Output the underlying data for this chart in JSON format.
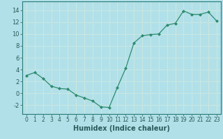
{
  "x": [
    0,
    1,
    2,
    3,
    4,
    5,
    6,
    7,
    8,
    9,
    10,
    11,
    12,
    13,
    14,
    15,
    16,
    17,
    18,
    19,
    20,
    21,
    22,
    23
  ],
  "y": [
    3.0,
    3.5,
    2.5,
    1.2,
    0.8,
    0.7,
    -0.3,
    -0.8,
    -1.3,
    -2.3,
    -2.4,
    1.0,
    4.2,
    8.5,
    9.7,
    9.9,
    10.0,
    11.5,
    11.8,
    13.9,
    13.3,
    13.3,
    13.7,
    12.2
  ],
  "line_color": "#2e8b6e",
  "marker_color": "#2e8b6e",
  "bg_color": "#b2e0e8",
  "grid_color": "#c8e8e0",
  "xlabel": "Humidex (Indice chaleur)",
  "xlabel_fontsize": 7,
  "ylabel_ticks": [
    -2,
    0,
    2,
    4,
    6,
    8,
    10,
    12,
    14
  ],
  "xlim": [
    -0.5,
    23.5
  ],
  "ylim": [
    -3.5,
    15.5
  ],
  "xticks": [
    0,
    1,
    2,
    3,
    4,
    5,
    6,
    7,
    8,
    9,
    10,
    11,
    12,
    13,
    14,
    15,
    16,
    17,
    18,
    19,
    20,
    21,
    22,
    23
  ],
  "tick_fontsize": 5.5,
  "ytick_fontsize": 6.0
}
